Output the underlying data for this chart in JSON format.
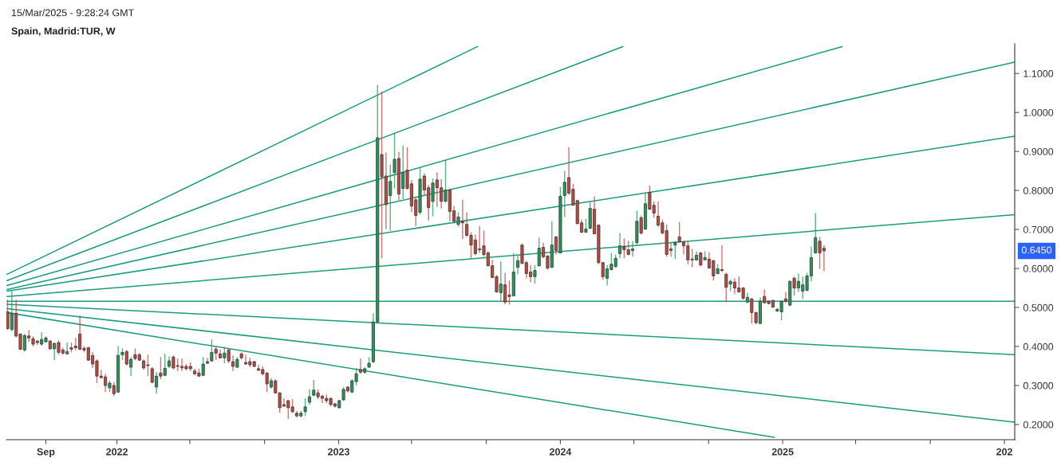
{
  "chart_data": {
    "type": "candlestick",
    "title": "Spain, Madrid:TUR, W",
    "annotations": [
      "15/Mar/2025 - 9:28:24 GMT",
      "0.6450"
    ],
    "colors": [
      "#c4463d",
      "#1e9c5a",
      "#c4463d",
      "#c4463d",
      "#1e9c5a",
      "#c4463d",
      "#c4463d",
      "#c4463d",
      "#1e9c5a",
      "#1e9c5a",
      "#c4463d",
      "#1e9c5a",
      "#c4463d",
      "#c4463d",
      "#1e9c5a",
      "#c4463d",
      "#c4463d",
      "#c4463d",
      "#c4463d",
      "#c4463d",
      "#c4463d",
      "#c4463d",
      "#c4463d",
      "#c4463d",
      "#1e9c5a",
      "#c4463d",
      "#1e9c5a",
      "#1e9c5a",
      "#c4463d",
      "#1e9c5a",
      "#c4463d",
      "#c4463d",
      "#c4463d",
      "#c4463d",
      "#c4463d",
      "#1e9c5a",
      "#c4463d",
      "#1e9c5a",
      "#1e9c5a",
      "#c4463d",
      "#c4463d",
      "#c4463d",
      "#c4463d",
      "#c4463d",
      "#c4463d",
      "#c4463d",
      "#1e9c5a",
      "#c4463d",
      "#1e9c5a",
      "#c4463d",
      "#c4463d",
      "#1e9c5a",
      "#c4463d",
      "#c4463d",
      "#1e9c5a",
      "#c4463d",
      "#c4463d",
      "#c4463d",
      "#c4463d",
      "#c4463d",
      "#c4463d",
      "#c4463d",
      "#1e9c5a",
      "#c4463d",
      "#c4463d",
      "#c4463d",
      "#c4463d",
      "#c4463d",
      "#c4463d",
      "#1e9c5a",
      "#1e9c5a",
      "#1e9c5a",
      "#1e9c5a",
      "#c4463d",
      "#c4463d",
      "#c4463d",
      "#c4463d",
      "#c4463d",
      "#1e9c5a",
      "#1e9c5a",
      "#c4463d",
      "#1e9c5a",
      "#1e9c5a",
      "#c4463d",
      "#1e9c5a",
      "#1e9c5a",
      "#1e9c5a",
      "#1e9c5a",
      "#c4463d",
      "#c4463d",
      "#1e9c5a",
      "#1e9c5a",
      "#c4463d",
      "#1e9c5a",
      "#c4463d",
      "#c4463d",
      "#c4463d",
      "#1e9c5a",
      "#c4463d",
      "#c4463d",
      "#1e9c5a",
      "#c4463d",
      "#c4463d",
      "#1e9c5a",
      "#c4463d",
      "#c4463d",
      "#1e9c5a",
      "#c4463d",
      "#c4463d",
      "#c4463d",
      "#c4463d",
      "#c4463d",
      "#c4463d",
      "#c4463d",
      "#c4463d",
      "#c4463d",
      "#1e9c5a",
      "#c4463d",
      "#c4463d",
      "#1e9c5a",
      "#1e9c5a",
      "#c4463d",
      "#c4463d",
      "#c4463d",
      "#1e9c5a",
      "#1e9c5a",
      "#c4463d",
      "#c4463d",
      "#1e9c5a",
      "#c4463d",
      "#1e9c5a",
      "#1e9c5a",
      "#c4463d",
      "#c4463d",
      "#c4463d",
      "#c4463d",
      "#1e9c5a",
      "#1e9c5a",
      "#c4463d",
      "#c4463d",
      "#c4463d",
      "#1e9c5a",
      "#1e9c5a",
      "#1e9c5a",
      "#1e9c5a",
      "#c4463d",
      "#c4463d",
      "#1e9c5a",
      "#1e9c5a",
      "#c4463d",
      "#1e9c5a",
      "#c4463d",
      "#c4463d",
      "#c4463d",
      "#c4463d",
      "#c4463d",
      "#c4463d",
      "#1e9c5a",
      "#c4463d",
      "#c4463d",
      "#c4463d",
      "#c4463d",
      "#1e9c5a",
      "#c4463d",
      "#1e9c5a",
      "#c4463d",
      "#c4463d",
      "#1e9c5a",
      "#c4463d",
      "#c4463d",
      "#1e9c5a",
      "#c4463d",
      "#c4463d",
      "#c4463d",
      "#1e9c5a",
      "#c4463d",
      "#c4463d",
      "#1e9c5a",
      "#c4463d",
      "#c4463d",
      "#c4463d",
      "#1e9c5a",
      "#1e9c5a",
      "#c4463d",
      "#1e9c5a",
      "#c4463d",
      "#1e9c5a",
      "#1e9c5a",
      "#1e9c5a",
      "#1e9c5a",
      "#1e9c5a",
      "#c4463d",
      "#c4463d"
    ],
    "x": [
      "2021-07-05",
      "2021-07-12",
      "2021-07-19",
      "2021-07-26",
      "2021-08-02",
      "2021-08-09",
      "2021-08-16",
      "2021-08-23",
      "2021-08-30",
      "2021-09-06",
      "2021-09-13",
      "2021-09-20",
      "2021-09-27",
      "2021-10-04",
      "2021-10-11",
      "2021-10-18",
      "2021-10-25",
      "2021-11-01",
      "2021-11-08",
      "2021-11-15",
      "2021-11-22",
      "2021-11-29",
      "2021-12-06",
      "2021-12-13",
      "2021-12-20",
      "2021-12-27",
      "2022-01-03",
      "2022-01-10",
      "2022-01-17",
      "2022-01-24",
      "2022-01-31",
      "2022-02-07",
      "2022-02-14",
      "2022-02-21",
      "2022-02-28",
      "2022-03-07",
      "2022-03-14",
      "2022-03-21",
      "2022-03-28",
      "2022-04-04",
      "2022-04-11",
      "2022-04-18",
      "2022-04-25",
      "2022-05-02",
      "2022-05-09",
      "2022-05-16",
      "2022-05-23",
      "2022-05-30",
      "2022-06-06",
      "2022-06-13",
      "2022-06-20",
      "2022-06-27",
      "2022-07-04",
      "2022-07-11",
      "2022-07-18",
      "2022-07-25",
      "2022-08-01",
      "2022-08-08",
      "2022-08-15",
      "2022-08-22",
      "2022-08-29",
      "2022-09-05",
      "2022-09-12",
      "2022-09-19",
      "2022-09-26",
      "2022-10-03",
      "2022-10-10",
      "2022-10-17",
      "2022-10-24",
      "2022-10-31",
      "2022-11-07",
      "2022-11-14",
      "2022-11-21",
      "2022-11-28",
      "2022-12-05",
      "2022-12-12",
      "2022-12-19",
      "2022-12-26",
      "2023-01-02",
      "2023-01-09",
      "2023-01-16",
      "2023-01-23",
      "2023-01-30",
      "2023-02-06",
      "2023-02-13",
      "2023-02-20",
      "2023-02-27",
      "2023-03-06",
      "2023-03-13",
      "2023-03-20",
      "2023-03-27",
      "2023-04-03",
      "2023-04-10",
      "2023-04-17",
      "2023-04-24",
      "2023-05-01",
      "2023-05-08",
      "2023-05-15",
      "2023-05-22",
      "2023-05-29",
      "2023-06-05",
      "2023-06-12",
      "2023-06-19",
      "2023-06-26",
      "2023-07-03",
      "2023-07-10",
      "2023-07-17",
      "2023-07-24",
      "2023-07-31",
      "2023-08-07",
      "2023-08-14",
      "2023-08-21",
      "2023-08-28",
      "2023-09-04",
      "2023-09-11",
      "2023-09-18",
      "2023-09-25",
      "2023-10-02",
      "2023-10-09",
      "2023-10-16",
      "2023-10-23",
      "2023-10-30",
      "2023-11-06",
      "2023-11-13",
      "2023-11-20",
      "2023-11-27",
      "2023-12-04",
      "2023-12-11",
      "2023-12-18",
      "2023-12-25",
      "2024-01-01",
      "2024-01-08",
      "2024-01-15",
      "2024-01-22",
      "2024-01-29",
      "2024-02-05",
      "2024-02-12",
      "2024-02-19",
      "2024-02-26",
      "2024-03-04",
      "2024-03-11",
      "2024-03-18",
      "2024-03-25",
      "2024-04-01",
      "2024-04-08",
      "2024-04-15",
      "2024-04-22",
      "2024-04-29",
      "2024-05-06",
      "2024-05-13",
      "2024-05-20",
      "2024-05-27",
      "2024-06-03",
      "2024-06-10",
      "2024-06-17",
      "2024-06-24",
      "2024-07-01",
      "2024-07-08",
      "2024-07-15",
      "2024-07-22",
      "2024-07-29",
      "2024-08-05",
      "2024-08-12",
      "2024-08-19",
      "2024-08-26",
      "2024-09-02",
      "2024-09-09",
      "2024-09-16",
      "2024-09-23",
      "2024-09-30",
      "2024-10-07",
      "2024-10-14",
      "2024-10-21",
      "2024-10-28",
      "2024-11-04",
      "2024-11-11",
      "2024-11-18",
      "2024-11-25",
      "2024-12-02",
      "2024-12-09",
      "2024-12-16",
      "2024-12-23",
      "2024-12-30",
      "2025-01-06",
      "2025-01-13",
      "2025-01-20",
      "2025-01-27",
      "2025-02-03",
      "2025-02-10",
      "2025-02-17",
      "2025-02-24",
      "2025-03-03",
      "2025-03-10"
    ],
    "ohlc": [
      [
        0.489,
        0.52,
        0.442,
        0.446
      ],
      [
        0.444,
        0.542,
        0.438,
        0.485
      ],
      [
        0.485,
        0.52,
        0.423,
        0.427
      ],
      [
        0.432,
        0.432,
        0.391,
        0.393
      ],
      [
        0.391,
        0.432,
        0.387,
        0.428
      ],
      [
        0.427,
        0.442,
        0.412,
        0.422
      ],
      [
        0.42,
        0.426,
        0.4,
        0.406
      ],
      [
        0.414,
        0.416,
        0.404,
        0.41
      ],
      [
        0.406,
        0.436,
        0.402,
        0.418
      ],
      [
        0.412,
        0.426,
        0.41,
        0.422
      ],
      [
        0.414,
        0.416,
        0.392,
        0.394
      ],
      [
        0.394,
        0.41,
        0.365,
        0.408
      ],
      [
        0.41,
        0.416,
        0.379,
        0.385
      ],
      [
        0.391,
        0.397,
        0.379,
        0.383
      ],
      [
        0.381,
        0.41,
        0.379,
        0.387
      ],
      [
        0.397,
        0.41,
        0.385,
        0.393
      ],
      [
        0.401,
        0.422,
        0.391,
        0.397
      ],
      [
        0.432,
        0.479,
        0.391,
        0.393
      ],
      [
        0.395,
        0.401,
        0.385,
        0.391
      ],
      [
        0.397,
        0.399,
        0.363,
        0.365
      ],
      [
        0.377,
        0.385,
        0.345,
        0.355
      ],
      [
        0.363,
        0.367,
        0.306,
        0.324
      ],
      [
        0.324,
        0.34,
        0.318,
        0.32
      ],
      [
        0.322,
        0.33,
        0.283,
        0.3
      ],
      [
        0.294,
        0.312,
        0.283,
        0.306
      ],
      [
        0.3,
        0.308,
        0.273,
        0.279
      ],
      [
        0.283,
        0.401,
        0.281,
        0.377
      ],
      [
        0.379,
        0.395,
        0.365,
        0.385
      ],
      [
        0.387,
        0.391,
        0.351,
        0.355
      ],
      [
        0.347,
        0.373,
        0.324,
        0.367
      ],
      [
        0.379,
        0.395,
        0.365,
        0.369
      ],
      [
        0.379,
        0.383,
        0.363,
        0.365
      ],
      [
        0.363,
        0.367,
        0.34,
        0.345
      ],
      [
        0.353,
        0.379,
        0.324,
        0.351
      ],
      [
        0.343,
        0.347,
        0.306,
        0.308
      ],
      [
        0.296,
        0.334,
        0.279,
        0.324
      ],
      [
        0.332,
        0.373,
        0.316,
        0.324
      ],
      [
        0.326,
        0.381,
        0.324,
        0.344
      ],
      [
        0.349,
        0.375,
        0.345,
        0.363
      ],
      [
        0.373,
        0.377,
        0.341,
        0.345
      ],
      [
        0.351,
        0.369,
        0.337,
        0.349
      ],
      [
        0.349,
        0.369,
        0.337,
        0.345
      ],
      [
        0.349,
        0.355,
        0.339,
        0.343
      ],
      [
        0.349,
        0.359,
        0.337,
        0.343
      ],
      [
        0.337,
        0.343,
        0.326,
        0.33
      ],
      [
        0.332,
        0.343,
        0.322,
        0.324
      ],
      [
        0.326,
        0.373,
        0.324,
        0.355
      ],
      [
        0.361,
        0.371,
        0.355,
        0.357
      ],
      [
        0.363,
        0.418,
        0.361,
        0.385
      ],
      [
        0.393,
        0.399,
        0.365,
        0.383
      ],
      [
        0.381,
        0.392,
        0.369,
        0.371
      ],
      [
        0.371,
        0.399,
        0.357,
        0.383
      ],
      [
        0.391,
        0.395,
        0.357,
        0.363
      ],
      [
        0.361,
        0.377,
        0.337,
        0.349
      ],
      [
        0.347,
        0.373,
        0.345,
        0.367
      ],
      [
        0.381,
        0.385,
        0.367,
        0.371
      ],
      [
        0.359,
        0.379,
        0.353,
        0.355
      ],
      [
        0.361,
        0.371,
        0.347,
        0.353
      ],
      [
        0.361,
        0.363,
        0.347,
        0.349
      ],
      [
        0.343,
        0.353,
        0.337,
        0.339
      ],
      [
        0.341,
        0.349,
        0.326,
        0.33
      ],
      [
        0.332,
        0.334,
        0.283,
        0.304
      ],
      [
        0.296,
        0.318,
        0.292,
        0.312
      ],
      [
        0.312,
        0.316,
        0.279,
        0.281
      ],
      [
        0.281,
        0.283,
        0.23,
        0.243
      ],
      [
        0.251,
        0.267,
        0.245,
        0.247
      ],
      [
        0.261,
        0.263,
        0.214,
        0.243
      ],
      [
        0.245,
        0.265,
        0.229,
        0.233
      ],
      [
        0.229,
        0.235,
        0.218,
        0.222
      ],
      [
        0.222,
        0.235,
        0.218,
        0.229
      ],
      [
        0.233,
        0.267,
        0.222,
        0.245
      ],
      [
        0.257,
        0.29,
        0.251,
        0.271
      ],
      [
        0.275,
        0.314,
        0.273,
        0.288
      ],
      [
        0.281,
        0.29,
        0.265,
        0.271
      ],
      [
        0.273,
        0.275,
        0.255,
        0.267
      ],
      [
        0.267,
        0.277,
        0.255,
        0.261
      ],
      [
        0.267,
        0.269,
        0.247,
        0.251
      ],
      [
        0.253,
        0.255,
        0.243,
        0.247
      ],
      [
        0.243,
        0.263,
        0.241,
        0.261
      ],
      [
        0.263,
        0.296,
        0.261,
        0.29
      ],
      [
        0.296,
        0.298,
        0.282,
        0.286
      ],
      [
        0.283,
        0.316,
        0.281,
        0.312
      ],
      [
        0.31,
        0.345,
        0.3,
        0.33
      ],
      [
        0.341,
        0.369,
        0.33,
        0.334
      ],
      [
        0.334,
        0.347,
        0.33,
        0.343
      ],
      [
        0.347,
        0.373,
        0.345,
        0.357
      ],
      [
        0.361,
        0.485,
        0.357,
        0.463
      ],
      [
        0.463,
        1.07,
        0.459,
        0.935
      ],
      [
        0.892,
        1.053,
        0.626,
        0.835
      ],
      [
        0.837,
        0.897,
        0.701,
        0.764
      ],
      [
        0.787,
        0.866,
        0.697,
        0.823
      ],
      [
        0.846,
        0.947,
        0.805,
        0.88
      ],
      [
        0.882,
        0.899,
        0.775,
        0.791
      ],
      [
        0.805,
        0.915,
        0.778,
        0.846
      ],
      [
        0.852,
        0.911,
        0.803,
        0.805
      ],
      [
        0.817,
        0.827,
        0.744,
        0.76
      ],
      [
        0.776,
        0.785,
        0.709,
        0.736
      ],
      [
        0.744,
        0.86,
        0.738,
        0.829
      ],
      [
        0.837,
        0.844,
        0.787,
        0.801
      ],
      [
        0.807,
        0.815,
        0.723,
        0.756
      ],
      [
        0.772,
        0.831,
        0.734,
        0.819
      ],
      [
        0.827,
        0.846,
        0.758,
        0.807
      ],
      [
        0.807,
        0.829,
        0.754,
        0.772
      ],
      [
        0.772,
        0.878,
        0.77,
        0.801
      ],
      [
        0.801,
        0.805,
        0.721,
        0.746
      ],
      [
        0.748,
        0.76,
        0.715,
        0.721
      ],
      [
        0.713,
        0.744,
        0.707,
        0.732
      ],
      [
        0.721,
        0.776,
        0.675,
        0.717
      ],
      [
        0.713,
        0.744,
        0.681,
        0.685
      ],
      [
        0.685,
        0.693,
        0.626,
        0.66
      ],
      [
        0.673,
        0.687,
        0.634,
        0.638
      ],
      [
        0.65,
        0.709,
        0.64,
        0.648
      ],
      [
        0.658,
        0.697,
        0.63,
        0.636
      ],
      [
        0.64,
        0.644,
        0.605,
        0.607
      ],
      [
        0.607,
        0.622,
        0.575,
        0.577
      ],
      [
        0.579,
        0.583,
        0.538,
        0.54
      ],
      [
        0.538,
        0.618,
        0.516,
        0.56
      ],
      [
        0.558,
        0.589,
        0.508,
        0.514
      ],
      [
        0.532,
        0.569,
        0.508,
        0.528
      ],
      [
        0.53,
        0.64,
        0.528,
        0.591
      ],
      [
        0.603,
        0.632,
        0.585,
        0.62
      ],
      [
        0.66,
        0.664,
        0.611,
        0.613
      ],
      [
        0.615,
        0.62,
        0.575,
        0.587
      ],
      [
        0.591,
        0.609,
        0.565,
        0.579
      ],
      [
        0.579,
        0.609,
        0.561,
        0.595
      ],
      [
        0.607,
        0.679,
        0.605,
        0.652
      ],
      [
        0.654,
        0.666,
        0.626,
        0.63
      ],
      [
        0.632,
        0.634,
        0.597,
        0.601
      ],
      [
        0.603,
        0.721,
        0.601,
        0.66
      ],
      [
        0.681,
        0.683,
        0.636,
        0.646
      ],
      [
        0.64,
        0.809,
        0.64,
        0.785
      ],
      [
        0.787,
        0.85,
        0.732,
        0.821
      ],
      [
        0.833,
        0.911,
        0.789,
        0.793
      ],
      [
        0.803,
        0.817,
        0.762,
        0.762
      ],
      [
        0.774,
        0.776,
        0.713,
        0.715
      ],
      [
        0.717,
        0.725,
        0.691,
        0.693
      ],
      [
        0.693,
        0.727,
        0.693,
        0.701
      ],
      [
        0.703,
        0.772,
        0.701,
        0.754
      ],
      [
        0.752,
        0.785,
        0.687,
        0.689
      ],
      [
        0.711,
        0.713,
        0.611,
        0.615
      ],
      [
        0.615,
        0.617,
        0.571,
        0.579
      ],
      [
        0.575,
        0.609,
        0.556,
        0.599
      ],
      [
        0.597,
        0.64,
        0.595,
        0.611
      ],
      [
        0.605,
        0.636,
        0.601,
        0.626
      ],
      [
        0.638,
        0.691,
        0.626,
        0.658
      ],
      [
        0.656,
        0.677,
        0.626,
        0.648
      ],
      [
        0.648,
        0.671,
        0.634,
        0.636
      ],
      [
        0.646,
        0.67,
        0.63,
        0.65
      ],
      [
        0.666,
        0.748,
        0.662,
        0.721
      ],
      [
        0.73,
        0.736,
        0.687,
        0.691
      ],
      [
        0.701,
        0.793,
        0.699,
        0.766
      ],
      [
        0.795,
        0.813,
        0.75,
        0.752
      ],
      [
        0.762,
        0.772,
        0.73,
        0.742
      ],
      [
        0.734,
        0.772,
        0.707,
        0.711
      ],
      [
        0.717,
        0.725,
        0.687,
        0.691
      ],
      [
        0.697,
        0.713,
        0.63,
        0.636
      ],
      [
        0.65,
        0.666,
        0.63,
        0.646
      ],
      [
        0.66,
        0.67,
        0.624,
        0.666
      ],
      [
        0.681,
        0.719,
        0.668,
        0.668
      ],
      [
        0.668,
        0.67,
        0.636,
        0.658
      ],
      [
        0.658,
        0.67,
        0.611,
        0.622
      ],
      [
        0.624,
        0.65,
        0.603,
        0.622
      ],
      [
        0.622,
        0.644,
        0.62,
        0.634
      ],
      [
        0.64,
        0.642,
        0.605,
        0.609
      ],
      [
        0.622,
        0.644,
        0.622,
        0.628
      ],
      [
        0.624,
        0.642,
        0.601,
        0.601
      ],
      [
        0.62,
        0.622,
        0.569,
        0.581
      ],
      [
        0.587,
        0.611,
        0.585,
        0.599
      ],
      [
        0.597,
        0.66,
        0.591,
        0.595
      ],
      [
        0.585,
        0.589,
        0.514,
        0.552
      ],
      [
        0.56,
        0.571,
        0.542,
        0.567
      ],
      [
        0.565,
        0.575,
        0.534,
        0.55
      ],
      [
        0.55,
        0.579,
        0.538,
        0.54
      ],
      [
        0.55,
        0.552,
        0.52,
        0.524
      ],
      [
        0.514,
        0.538,
        0.51,
        0.526
      ],
      [
        0.522,
        0.524,
        0.459,
        0.487
      ],
      [
        0.487,
        0.489,
        0.457,
        0.461
      ],
      [
        0.459,
        0.526,
        0.457,
        0.516
      ],
      [
        0.528,
        0.546,
        0.51,
        0.512
      ],
      [
        0.516,
        0.518,
        0.508,
        0.51
      ],
      [
        0.518,
        0.52,
        0.499,
        0.501
      ],
      [
        0.491,
        0.499,
        0.489,
        0.495
      ],
      [
        0.489,
        0.518,
        0.467,
        0.516
      ],
      [
        0.522,
        0.54,
        0.512,
        0.516
      ],
      [
        0.506,
        0.569,
        0.503,
        0.567
      ],
      [
        0.575,
        0.579,
        0.53,
        0.55
      ],
      [
        0.55,
        0.587,
        0.54,
        0.567
      ],
      [
        0.542,
        0.579,
        0.522,
        0.558
      ],
      [
        0.544,
        0.589,
        0.542,
        0.581
      ],
      [
        0.581,
        0.656,
        0.567,
        0.628
      ],
      [
        0.64,
        0.742,
        0.638,
        0.679
      ],
      [
        0.67,
        0.681,
        0.599,
        0.64
      ],
      [
        0.652,
        0.66,
        0.593,
        0.645
      ]
    ],
    "series": [
      {
        "type": "line",
        "color": "#1a9c80",
        "x": [
          "2021-07-04",
          "2023-08-18"
        ],
        "values": [
          0.585,
          1.169
        ]
      },
      {
        "type": "line",
        "color": "#1a9c80",
        "x": [
          "2021-07-04",
          "2024-04-13"
        ],
        "values": [
          0.569,
          1.169
        ]
      },
      {
        "type": "line",
        "color": "#1a9c80",
        "x": [
          "2021-07-04",
          "2025-04-09"
        ],
        "values": [
          0.556,
          1.169
        ]
      },
      {
        "type": "line",
        "color": "#1a9c80",
        "x": [
          "2021-07-04",
          "2026-01-18"
        ],
        "values": [
          0.546,
          1.129
        ]
      },
      {
        "type": "line",
        "color": "#1a9c80",
        "x": [
          "2021-07-04",
          "2026-01-18"
        ],
        "values": [
          0.542,
          0.939
        ]
      },
      {
        "type": "line",
        "color": "#1a9c80",
        "x": [
          "2021-07-04",
          "2026-01-18"
        ],
        "values": [
          0.528,
          0.738
        ]
      },
      {
        "type": "line",
        "color": "#1a9c80",
        "x": [
          "2021-07-04",
          "2026-01-18"
        ],
        "values": [
          0.516,
          0.516
        ]
      },
      {
        "type": "line",
        "color": "#1a9c80",
        "x": [
          "2021-07-04",
          "2026-01-18"
        ],
        "values": [
          0.508,
          0.379
        ]
      },
      {
        "type": "line",
        "color": "#1a9c80",
        "x": [
          "2021-07-04",
          "2026-01-18"
        ],
        "values": [
          0.497,
          0.206
        ]
      },
      {
        "type": "line",
        "color": "#1a9c80",
        "x": [
          "2021-07-04",
          "2024-12-18"
        ],
        "values": [
          0.487,
          0.167
        ]
      }
    ],
    "xlim": [
      "2021-07-03",
      "2026-01-18"
    ],
    "xticks": [
      {
        "value": "2021-09-06",
        "label": "Sep"
      },
      {
        "value": "2022-01-01",
        "label": "2022"
      },
      {
        "value": "2022-05-01",
        "label": null
      },
      {
        "value": "2022-09-01",
        "label": null
      },
      {
        "value": "2023-01-01",
        "label": "2023"
      },
      {
        "value": "2023-05-01",
        "label": null
      },
      {
        "value": "2023-09-01",
        "label": null
      },
      {
        "value": "2024-01-01",
        "label": "2024"
      },
      {
        "value": "2024-05-01",
        "label": null
      },
      {
        "value": "2024-09-01",
        "label": null
      },
      {
        "value": "2025-01-01",
        "label": "2025"
      },
      {
        "value": "2025-05-01",
        "label": null
      },
      {
        "value": "2025-09-01",
        "label": null
      },
      {
        "value": "2026-01-01",
        "label": "202"
      }
    ],
    "ylim": [
      0.161,
      1.176
    ],
    "yticks": [
      {
        "value": 0.2,
        "label": "0.2000"
      },
      {
        "value": 0.3,
        "label": "0.3000"
      },
      {
        "value": 0.4,
        "label": "0.4000"
      },
      {
        "value": 0.5,
        "label": "0.5000"
      },
      {
        "value": 0.6,
        "label": "0.6000"
      },
      {
        "value": 0.7,
        "label": "0.7000"
      },
      {
        "value": 0.8,
        "label": "0.8000"
      },
      {
        "value": 0.9,
        "label": "0.9000"
      },
      {
        "value": 1.0,
        "label": "1.0000"
      },
      {
        "value": 1.1,
        "label": "1.1000"
      }
    ],
    "grid": false,
    "legend": false
  }
}
